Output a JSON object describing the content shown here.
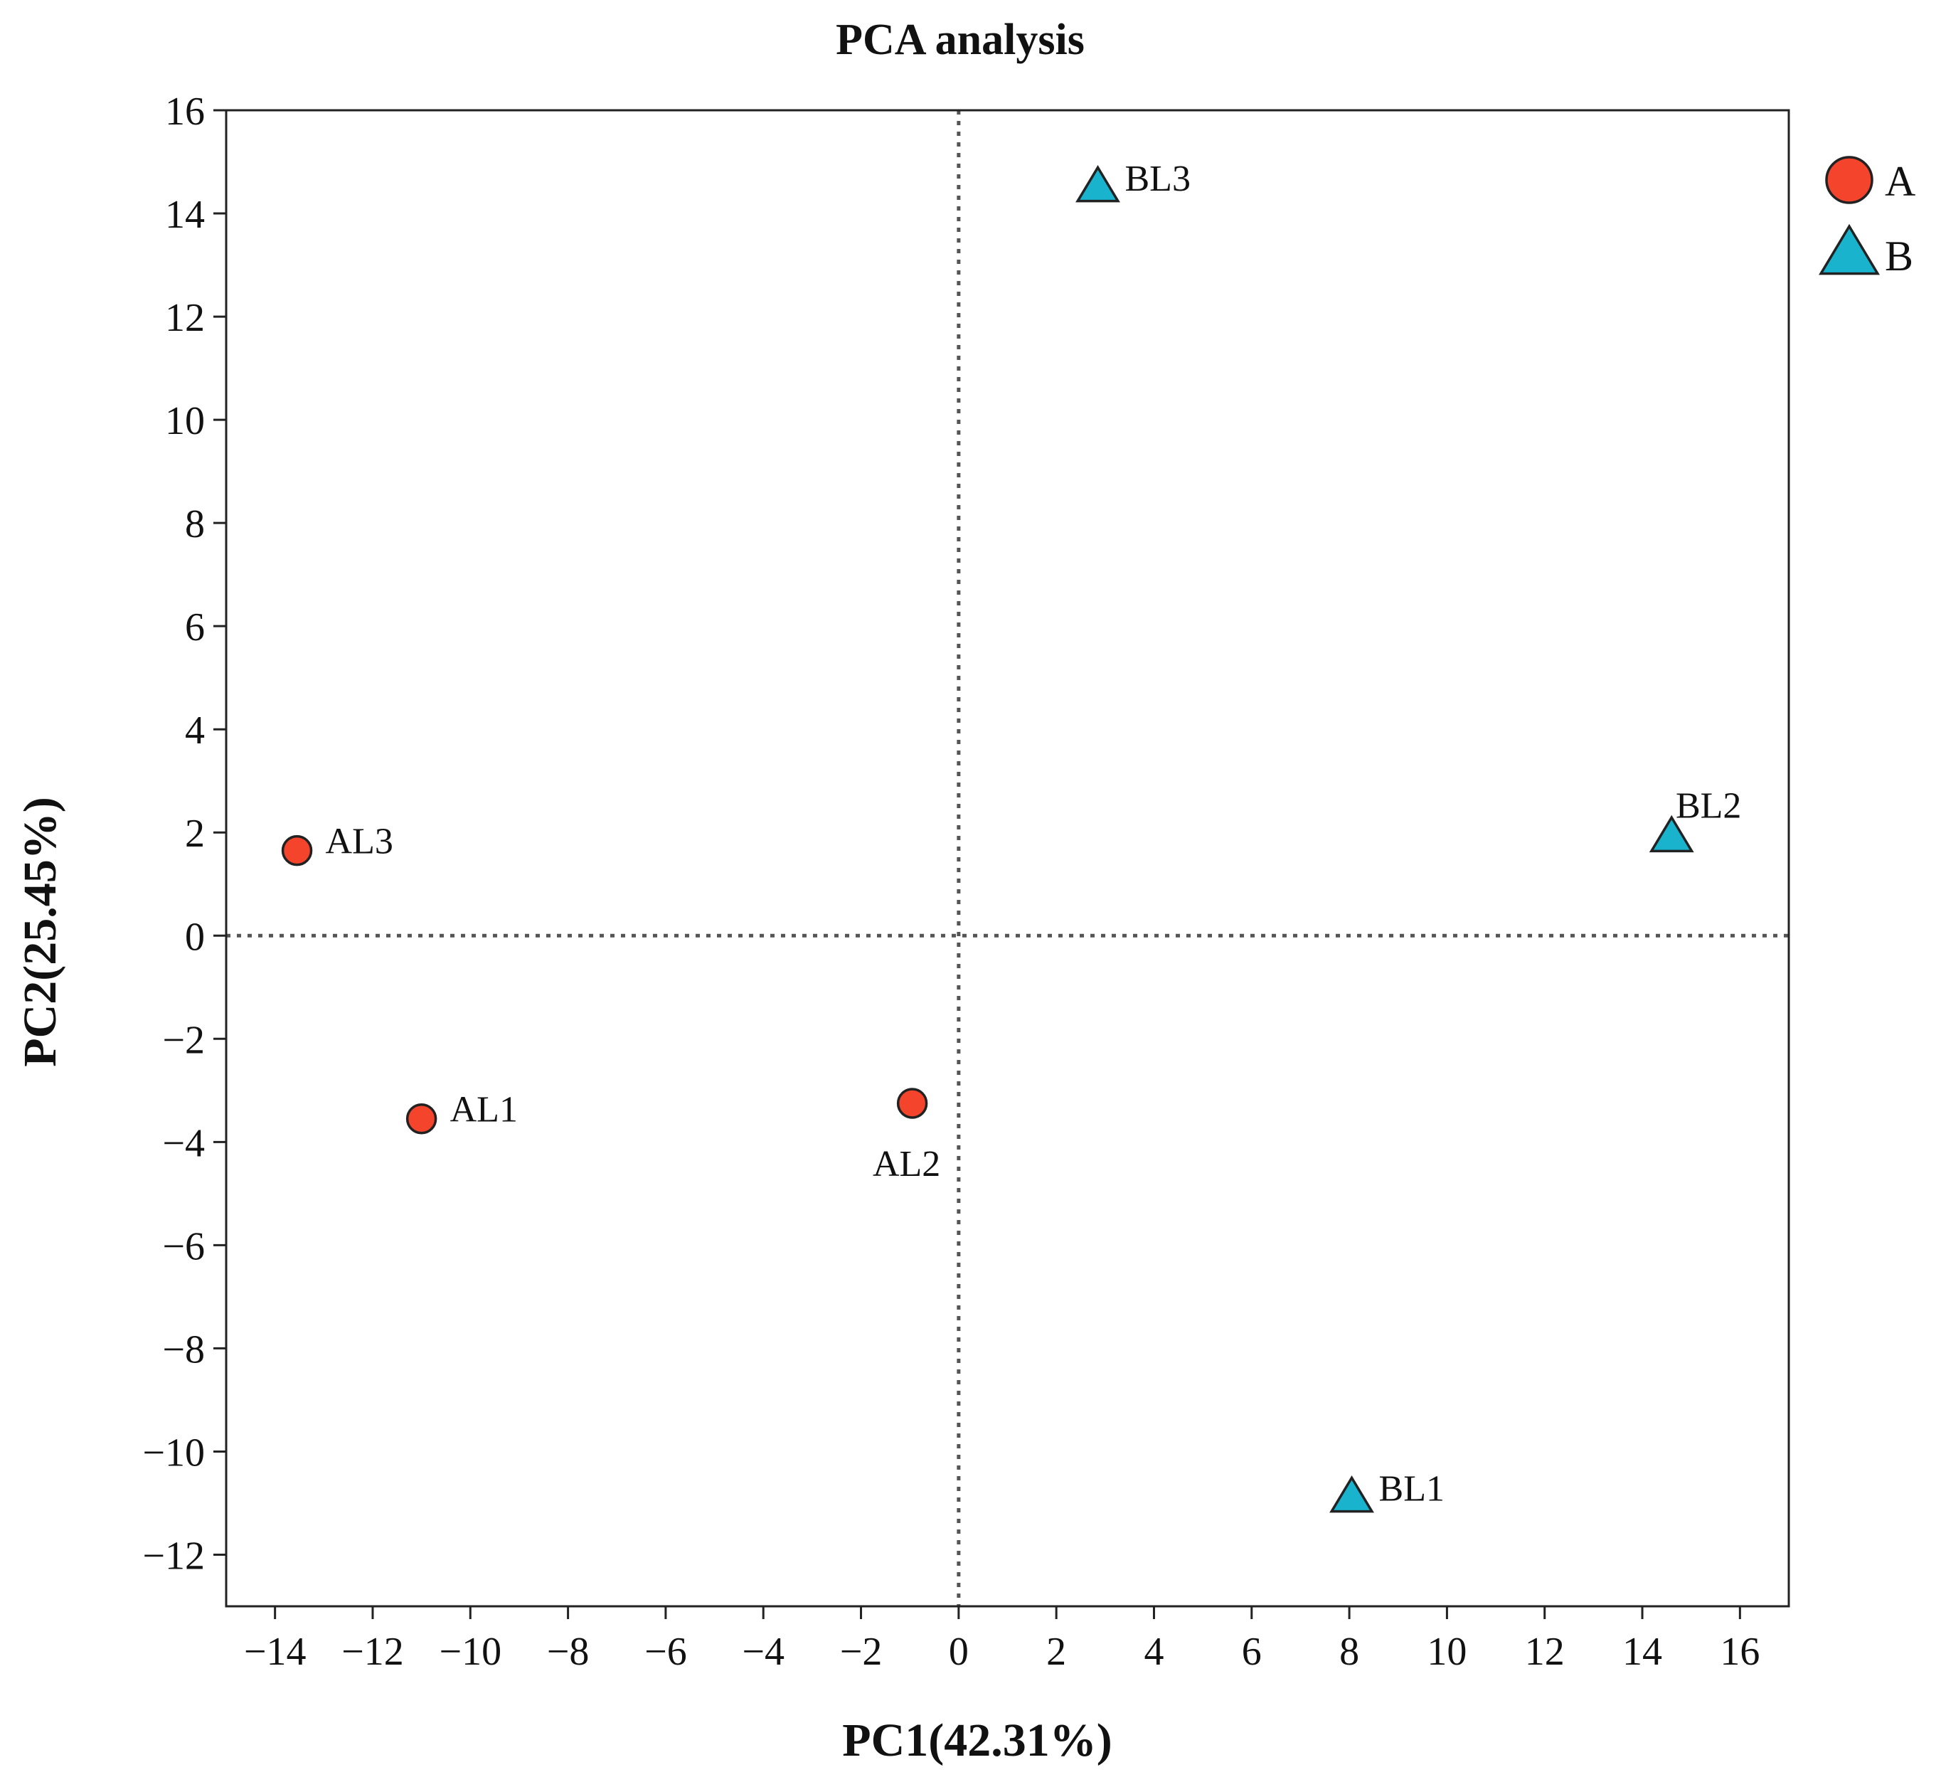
{
  "chart_data": {
    "type": "scatter",
    "title": "PCA analysis",
    "xlabel": "PC1(42.31%)",
    "ylabel": "PC2(25.45%)",
    "xlim": [
      -15,
      17
    ],
    "ylim": [
      -13,
      16
    ],
    "xticks": [
      -14,
      -12,
      -10,
      -8,
      -6,
      -4,
      -2,
      0,
      2,
      4,
      6,
      8,
      10,
      12,
      14,
      16
    ],
    "yticks": [
      -12,
      -10,
      -8,
      -6,
      -4,
      -2,
      0,
      2,
      4,
      6,
      8,
      10,
      12,
      14,
      16
    ],
    "reference_lines": {
      "x": 0,
      "y": 0,
      "style": "dotted"
    },
    "series": [
      {
        "name": "A",
        "marker": "circle",
        "color": "#F4442C",
        "points": [
          {
            "label": "AL1",
            "x": -11.0,
            "y": -3.55,
            "label_pos": "right"
          },
          {
            "label": "AL2",
            "x": -0.95,
            "y": -3.25,
            "label_pos": "below"
          },
          {
            "label": "AL3",
            "x": -13.55,
            "y": 1.65,
            "label_pos": "right"
          }
        ]
      },
      {
        "name": "B",
        "marker": "triangle",
        "color": "#1AB3CE",
        "points": [
          {
            "label": "BL1",
            "x": 8.05,
            "y": -10.9,
            "label_pos": "right"
          },
          {
            "label": "BL2",
            "x": 14.6,
            "y": 1.9,
            "label_pos": "above"
          },
          {
            "label": "BL3",
            "x": 2.85,
            "y": 14.5,
            "label_pos": "right"
          }
        ]
      }
    ],
    "legend": {
      "position": "top-right",
      "entries": [
        "A",
        "B"
      ]
    },
    "grid": false
  }
}
